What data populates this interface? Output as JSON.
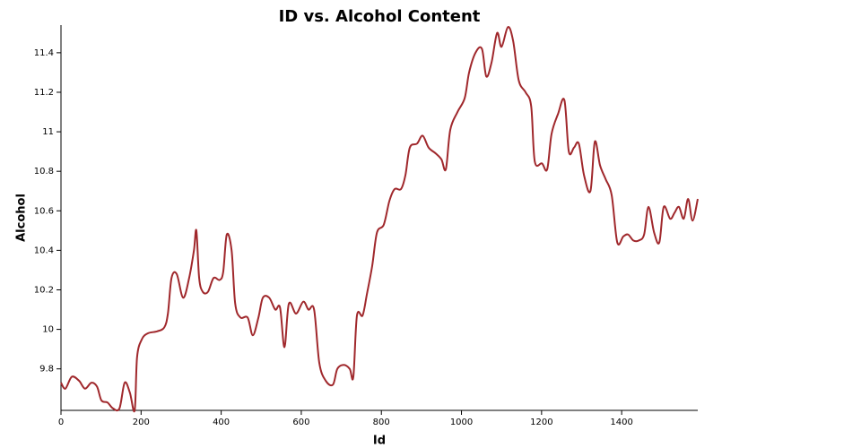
{
  "chart_data": {
    "type": "line",
    "title": "ID vs. Alcohol Content",
    "x_label": "Id",
    "y_label": "Alcohol",
    "x": [
      0,
      11,
      27,
      45,
      60,
      76,
      90,
      101,
      116,
      130,
      146,
      159,
      172,
      184,
      190,
      202,
      217,
      240,
      258,
      267,
      276,
      289,
      305,
      320,
      332,
      338,
      345,
      354,
      367,
      381,
      396,
      405,
      414,
      426,
      435,
      448,
      466,
      479,
      493,
      504,
      520,
      535,
      547,
      558,
      569,
      587,
      605,
      618,
      632,
      645,
      661,
      679,
      690,
      706,
      721,
      730,
      739,
      753,
      764,
      777,
      789,
      806,
      820,
      833,
      849,
      860,
      871,
      889,
      903,
      918,
      936,
      950,
      961,
      972,
      990,
      1008,
      1019,
      1035,
      1051,
      1062,
      1075,
      1089,
      1100,
      1116,
      1129,
      1143,
      1160,
      1174,
      1183,
      1201,
      1214,
      1225,
      1241,
      1257,
      1268,
      1281,
      1293,
      1306,
      1322,
      1333,
      1346,
      1360,
      1375,
      1389,
      1404,
      1416,
      1429,
      1443,
      1456,
      1467,
      1481,
      1494,
      1505,
      1521,
      1532,
      1543,
      1555,
      1566,
      1577,
      1590
    ],
    "series": [
      {
        "name": "Alcohol",
        "color": "#a0282c",
        "values": [
          9.73,
          9.7,
          9.76,
          9.74,
          9.7,
          9.73,
          9.71,
          9.64,
          9.63,
          9.6,
          9.6,
          9.73,
          9.68,
          9.59,
          9.86,
          9.95,
          9.98,
          9.99,
          10.01,
          10.08,
          10.26,
          10.28,
          10.16,
          10.26,
          10.4,
          10.5,
          10.26,
          10.19,
          10.19,
          10.26,
          10.25,
          10.29,
          10.48,
          10.4,
          10.13,
          10.06,
          10.06,
          9.97,
          10.06,
          10.16,
          10.16,
          10.1,
          10.11,
          9.91,
          10.13,
          10.08,
          10.14,
          10.1,
          10.1,
          9.83,
          9.74,
          9.72,
          9.8,
          9.82,
          9.8,
          9.76,
          10.07,
          10.07,
          10.18,
          10.32,
          10.49,
          10.53,
          10.65,
          10.71,
          10.71,
          10.78,
          10.92,
          10.94,
          10.98,
          10.92,
          10.89,
          10.86,
          10.81,
          11.01,
          11.1,
          11.17,
          11.3,
          11.4,
          11.42,
          11.28,
          11.35,
          11.5,
          11.43,
          11.53,
          11.46,
          11.26,
          11.2,
          11.13,
          10.85,
          10.84,
          10.81,
          10.99,
          11.09,
          11.16,
          10.9,
          10.92,
          10.94,
          10.78,
          10.7,
          10.95,
          10.83,
          10.76,
          10.68,
          10.44,
          10.47,
          10.48,
          10.45,
          10.45,
          10.48,
          10.62,
          10.49,
          10.44,
          10.62,
          10.56,
          10.59,
          10.62,
          10.56,
          10.66,
          10.55,
          10.66
        ]
      }
    ],
    "xlim": [
      0,
      1590
    ],
    "xticks": [
      0,
      200,
      400,
      600,
      800,
      1000,
      1200,
      1400
    ],
    "ylim": [
      9.59,
      11.54
    ],
    "yticks": [
      9.8,
      10,
      10.2,
      10.4,
      10.6,
      10.8,
      11,
      11.2,
      11.4
    ],
    "grid": false
  }
}
